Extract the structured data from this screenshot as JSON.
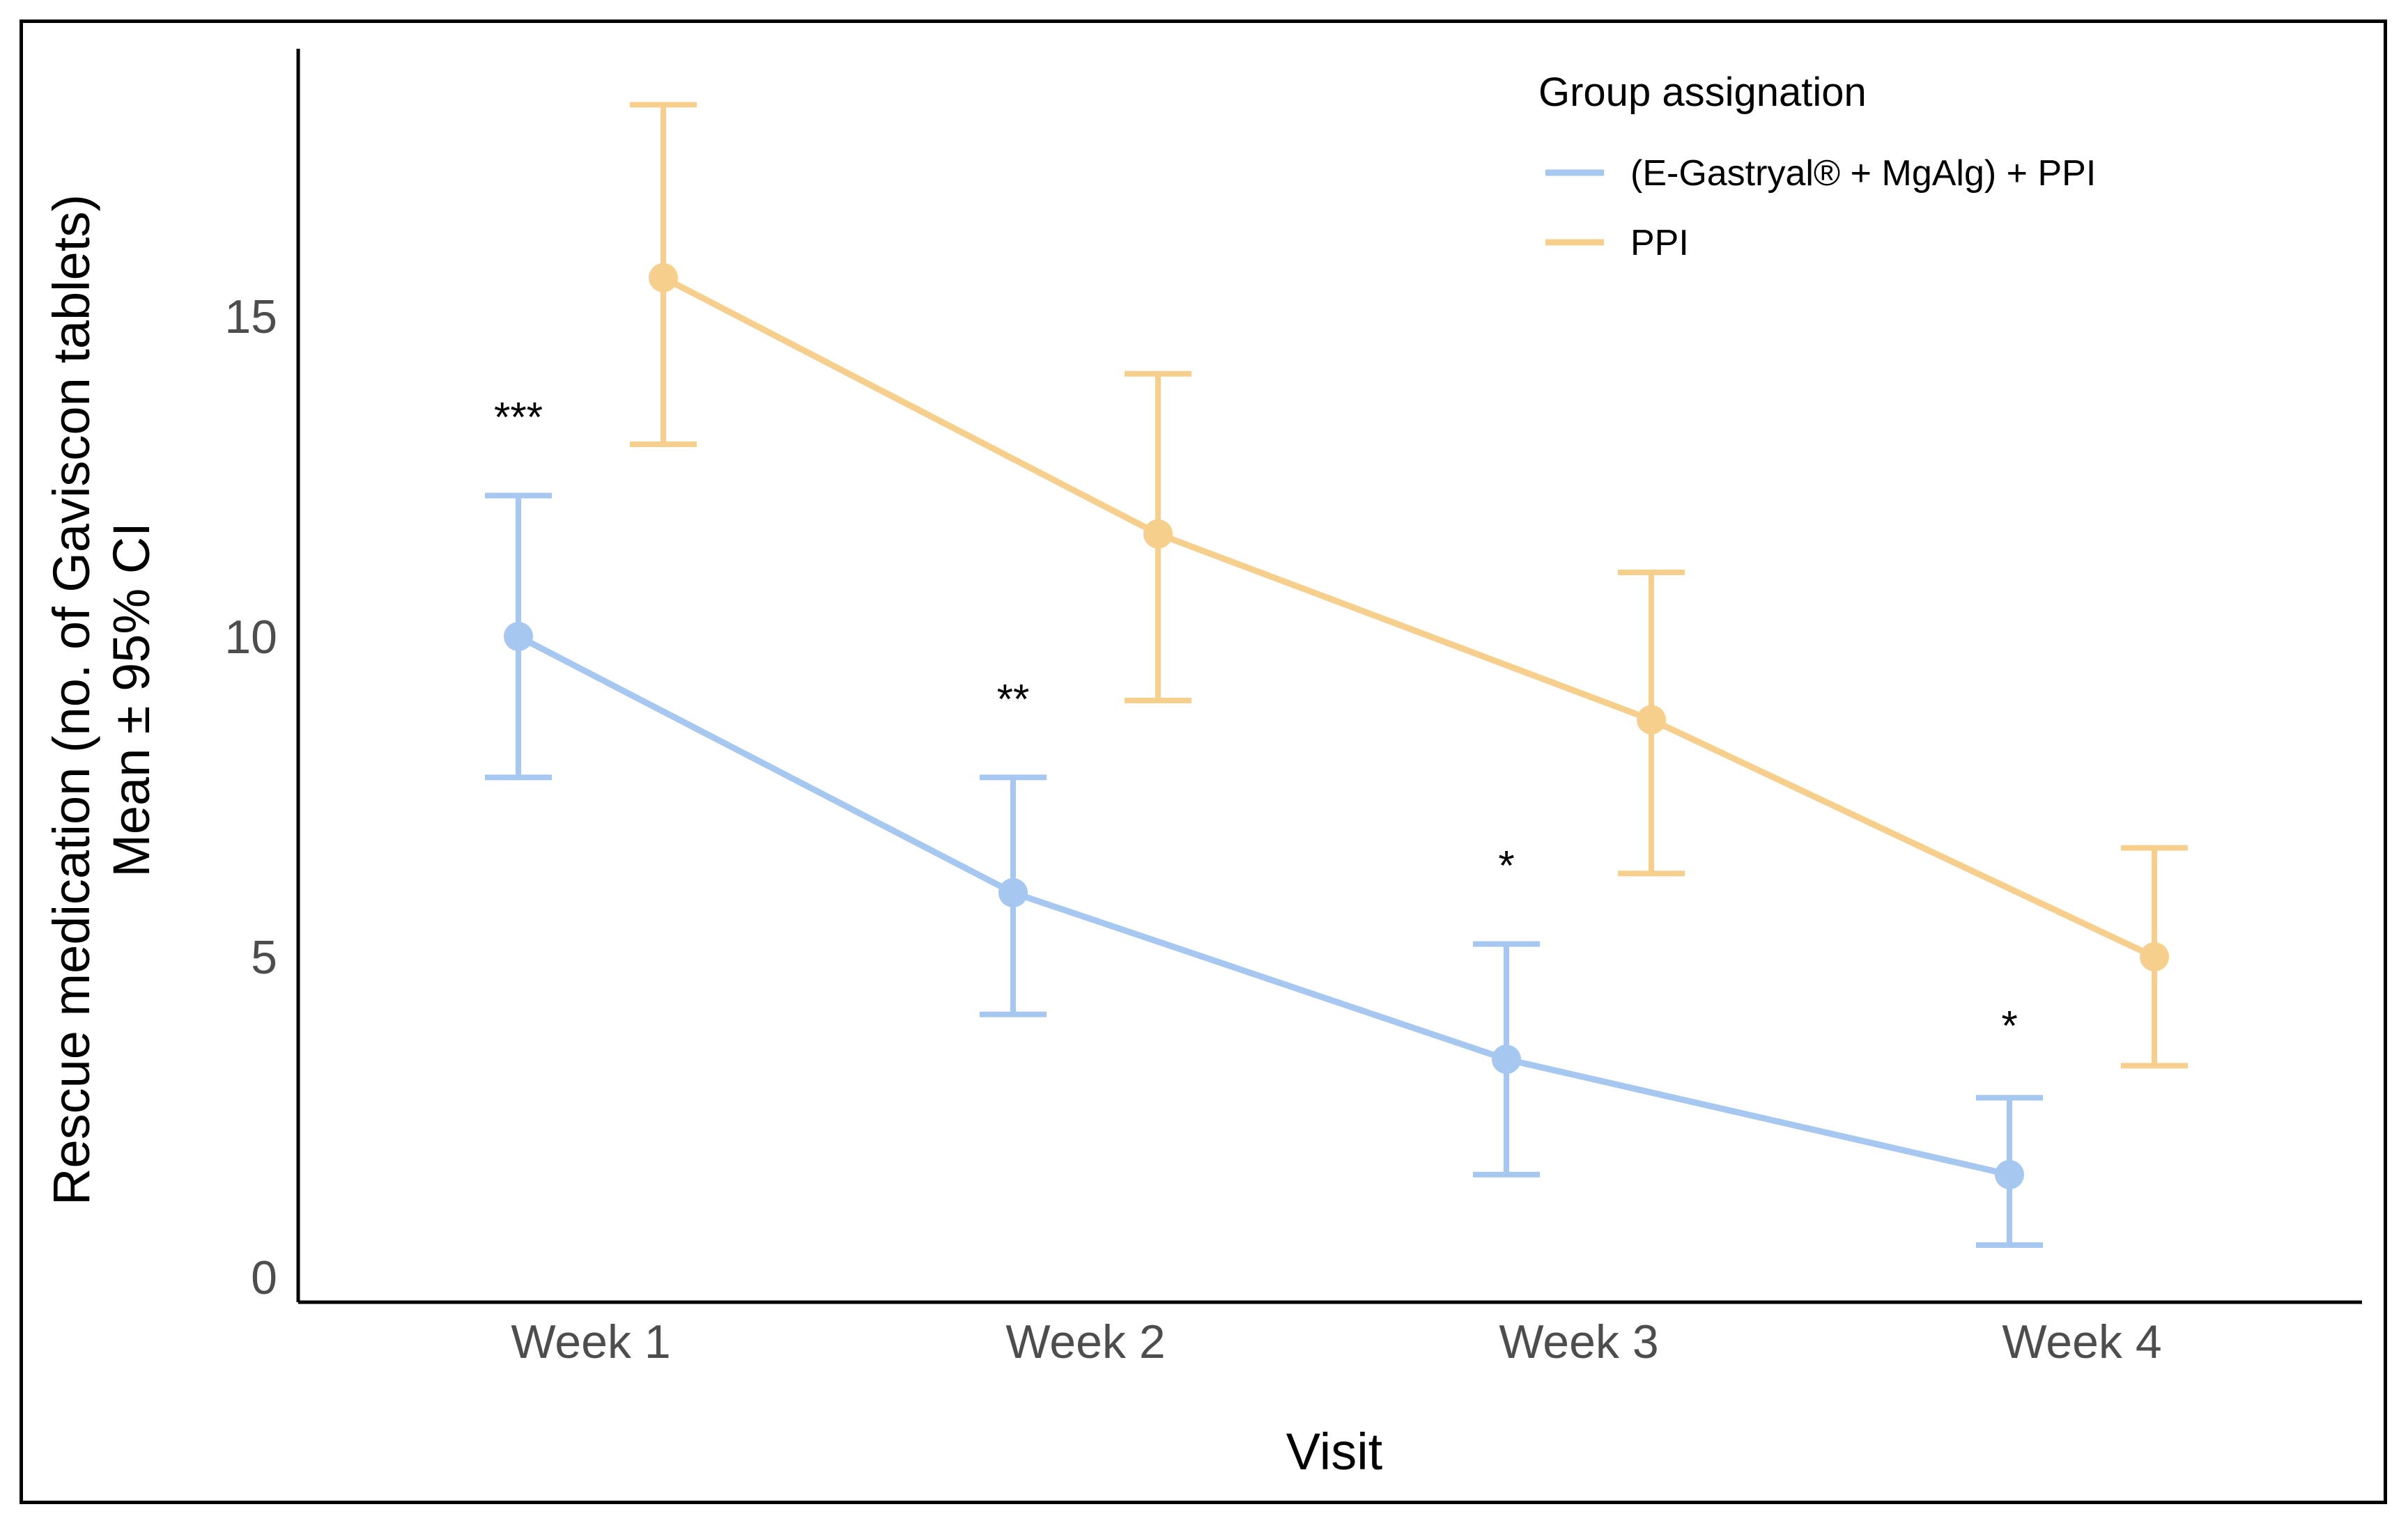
{
  "chart_data": {
    "type": "line",
    "xlabel": "Visit",
    "ylabel_line1": "Rescue medication (no. of Gaviscon tablets)",
    "ylabel_line2": "Mean ± 95% CI",
    "categories": [
      "Week 1",
      "Week 2",
      "Week 3",
      "Week 4"
    ],
    "ylim": [
      0,
      19
    ],
    "yticks": [
      0,
      5,
      10,
      15
    ],
    "legend": {
      "title": "Group assignation",
      "position": "top-right"
    },
    "series": [
      {
        "name": "(E-Gastryal® + MgAlg) + PPI",
        "color": "#a6c8f0",
        "values": [
          10.0,
          6.0,
          3.4,
          1.6
        ],
        "ci_low": [
          7.8,
          4.1,
          1.6,
          0.5
        ],
        "ci_high": [
          12.2,
          7.8,
          5.2,
          2.8
        ]
      },
      {
        "name": "PPI",
        "color": "#f7cf8c",
        "values": [
          15.6,
          11.6,
          8.7,
          5.0
        ],
        "ci_low": [
          13.0,
          9.0,
          6.3,
          3.3
        ],
        "ci_high": [
          18.3,
          14.1,
          11.0,
          6.7
        ]
      }
    ],
    "annotations": [
      {
        "category": "Week 1",
        "text": "***",
        "y": 13.2
      },
      {
        "category": "Week 2",
        "text": "**",
        "y": 8.8
      },
      {
        "category": "Week 3",
        "text": "*",
        "y": 6.2
      },
      {
        "category": "Week 4",
        "text": "*",
        "y": 3.7
      }
    ]
  }
}
